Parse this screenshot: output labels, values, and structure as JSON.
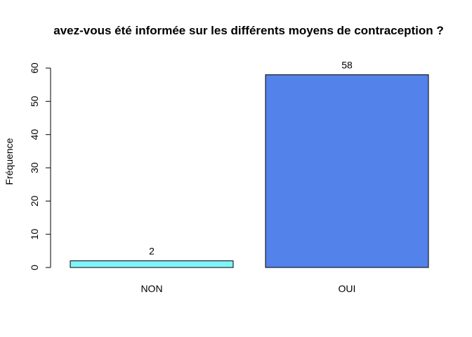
{
  "chart_data": {
    "type": "bar",
    "title": "avez-vous été informée sur les différents moyens de contraception ?",
    "xlabel": "",
    "ylabel": "Fréquence",
    "categories": [
      "NON",
      "OUI"
    ],
    "values": [
      2,
      58
    ],
    "data_labels": [
      "2",
      "58"
    ],
    "colors": [
      "#7ff5fa",
      "#5282ea"
    ],
    "ylim": [
      0,
      60
    ],
    "yticks": [
      0,
      10,
      20,
      30,
      40,
      50,
      60
    ],
    "grid": false,
    "legend": "none"
  }
}
